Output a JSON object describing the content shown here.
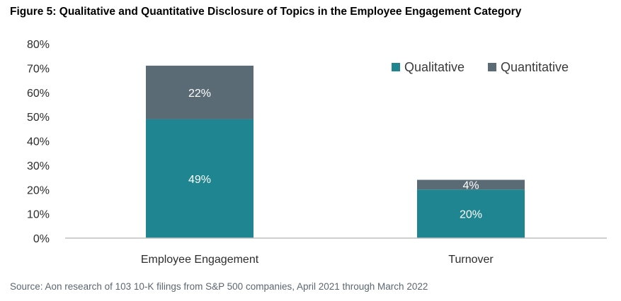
{
  "title": "Figure 5: Qualitative and Quantitative Disclosure of Topics in the Employee Engagement Category",
  "source": "Source: Aon research of 103 10-K filings from S&P 500 companies, April 2021 through March 2022",
  "colors": {
    "Qualitative": "#1f8590",
    "Quantitative": "#5b6b76",
    "axis": "#bfbfbf"
  },
  "chart_data": {
    "type": "bar",
    "stacked": true,
    "categories": [
      "Employee Engagement",
      "Turnover"
    ],
    "series": [
      {
        "name": "Qualitative",
        "values": [
          49,
          20
        ]
      },
      {
        "name": "Quantitative",
        "values": [
          22,
          4
        ]
      }
    ],
    "data_labels": [
      [
        "49%",
        "20%"
      ],
      [
        "22%",
        "4%"
      ]
    ],
    "y_ticks": [
      "0%",
      "10%",
      "20%",
      "30%",
      "40%",
      "50%",
      "60%",
      "70%",
      "80%"
    ],
    "ylim": [
      0,
      80
    ],
    "grid": false,
    "legend": "top-right"
  }
}
